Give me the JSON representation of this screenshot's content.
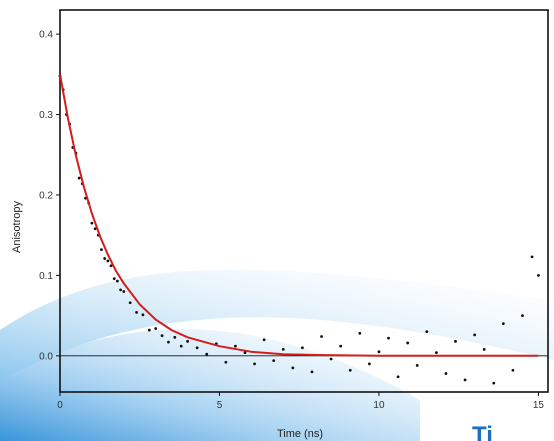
{
  "logo_text": "Ti",
  "colors": {
    "fit_line": "#d41c1c",
    "points": "#111111",
    "frame": "#111111",
    "baseline": "#111111",
    "swoosh_light": "#d6ecfa",
    "swoosh_mid": "#8fc6ee",
    "swoosh_dark": "#2d8fd8",
    "logo": "#1a6fc4"
  },
  "chart_data": {
    "type": "scatter",
    "title": "",
    "xlabel": "Time (ns)",
    "ylabel": "Anisotropy",
    "xlim": [
      0,
      15.3
    ],
    "ylim": [
      -0.045,
      0.43
    ],
    "xticks": [
      0,
      5,
      10,
      15
    ],
    "yticks": [
      0.0,
      0.1,
      0.2,
      0.3,
      0.4
    ],
    "xtick_labels": [
      "0",
      "5",
      "10",
      "15"
    ],
    "ytick_labels": [
      "0.0",
      "0.1",
      "0.2",
      "0.3",
      "0.4"
    ],
    "grid": false,
    "legend": "none",
    "baseline_y": 0.0,
    "series": [
      {
        "kind": "scatter",
        "x": [
          0.0,
          0.1,
          0.2,
          0.3,
          0.4,
          0.5,
          0.6,
          0.7,
          0.8,
          0.9,
          1.0,
          1.1,
          1.2,
          1.3,
          1.4,
          1.5,
          1.6,
          1.7,
          1.8,
          1.9,
          2.0,
          2.2,
          2.4,
          2.6,
          2.8,
          3.0,
          3.2,
          3.4,
          3.6,
          3.8,
          4.0,
          4.3,
          4.6,
          4.9,
          5.2,
          5.5,
          5.8,
          6.1,
          6.4,
          6.7,
          7.0,
          7.3,
          7.6,
          7.9,
          8.2,
          8.5,
          8.8,
          9.1,
          9.4,
          9.7,
          10.0,
          10.3,
          10.6,
          10.9,
          11.2,
          11.5,
          11.8,
          12.1,
          12.4,
          12.7,
          13.0,
          13.3,
          13.6,
          13.9,
          14.2,
          14.5,
          14.8,
          15.0
        ],
        "y": [
          0.348,
          0.331,
          0.3,
          0.288,
          0.259,
          0.252,
          0.221,
          0.214,
          0.196,
          0.19,
          0.165,
          0.158,
          0.15,
          0.132,
          0.121,
          0.118,
          0.112,
          0.096,
          0.093,
          0.082,
          0.08,
          0.066,
          0.054,
          0.051,
          0.032,
          0.034,
          0.025,
          0.017,
          0.023,
          0.012,
          0.018,
          0.01,
          0.002,
          0.015,
          -0.008,
          0.012,
          0.004,
          -0.01,
          0.02,
          -0.006,
          0.008,
          -0.015,
          0.01,
          -0.02,
          0.024,
          -0.004,
          0.012,
          -0.018,
          0.028,
          -0.01,
          0.005,
          0.022,
          -0.026,
          0.016,
          -0.012,
          0.03,
          0.004,
          -0.022,
          0.018,
          -0.03,
          0.026,
          0.008,
          -0.034,
          0.04,
          -0.018,
          0.05,
          0.123,
          0.1
        ]
      },
      {
        "kind": "fit-line",
        "x": [
          0,
          0.25,
          0.5,
          0.75,
          1,
          1.25,
          1.5,
          1.75,
          2,
          2.5,
          3,
          3.5,
          4,
          5,
          6,
          7,
          8,
          10,
          12,
          15
        ],
        "y": [
          0.35,
          0.295,
          0.249,
          0.21,
          0.177,
          0.149,
          0.126,
          0.106,
          0.09,
          0.064,
          0.045,
          0.032,
          0.023,
          0.012,
          0.005,
          0.002,
          0.001,
          0.0,
          0.0,
          0.0
        ]
      }
    ]
  }
}
